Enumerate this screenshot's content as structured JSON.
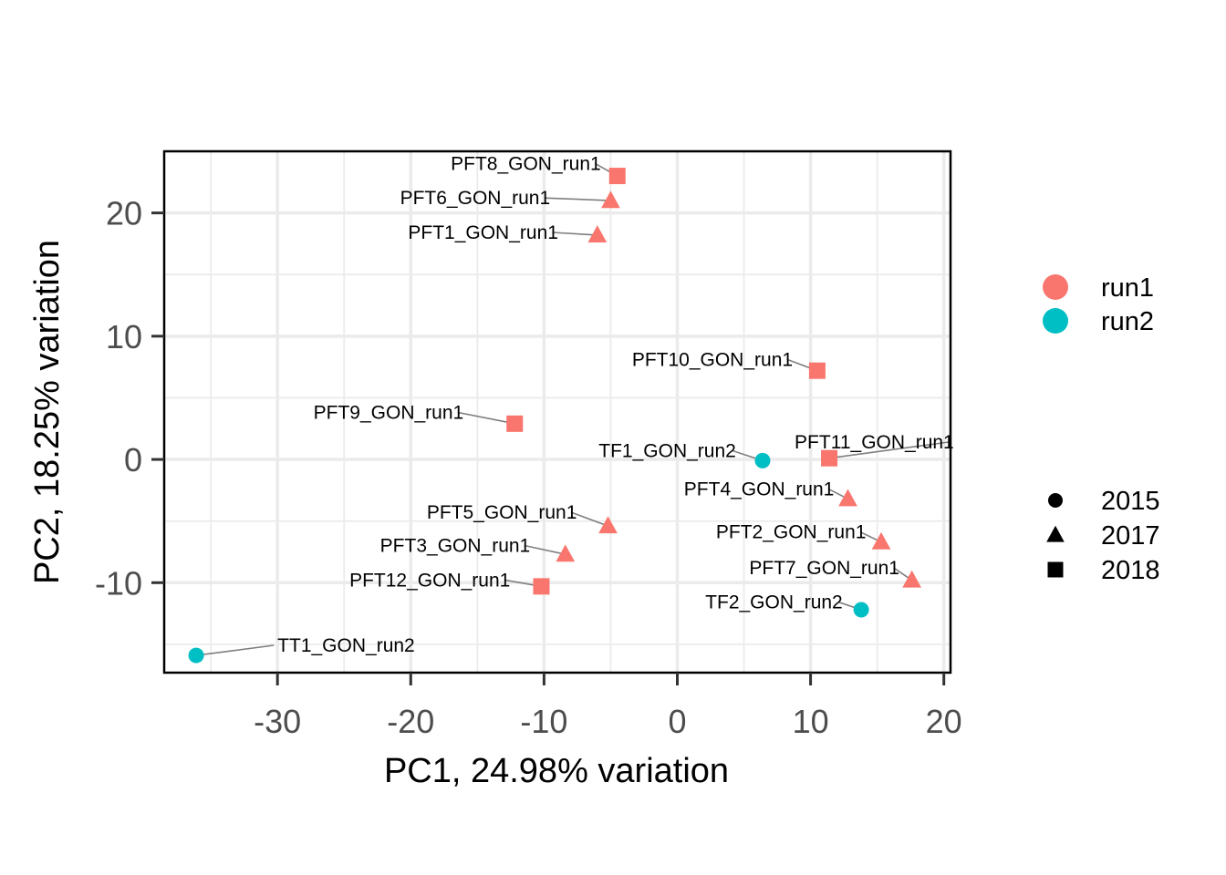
{
  "chart_data": {
    "type": "scatter",
    "xlabel": "PC1, 24.98% variation",
    "ylabel": "PC2, 18.25% variation",
    "xlim": [
      -38.5,
      20.5
    ],
    "ylim": [
      -17.3,
      25
    ],
    "x_ticks": [
      -30,
      -20,
      -10,
      0,
      10,
      20
    ],
    "y_ticks": [
      -10,
      0,
      10,
      20
    ],
    "grid": true,
    "legend_placement": "right",
    "color_legend": [
      {
        "label": "run1",
        "color": "#F8766D"
      },
      {
        "label": "run2",
        "color": "#00BFC4"
      }
    ],
    "shape_legend": [
      {
        "label": "2015",
        "shape": "circle"
      },
      {
        "label": "2017",
        "shape": "triangle"
      },
      {
        "label": "2018",
        "shape": "square"
      }
    ],
    "points": [
      {
        "label": "PFT8_GON_run1",
        "x": -4.5,
        "y": 23.0,
        "run": "run1",
        "year": "2018",
        "label_x": -17.0,
        "label_y": 23.5
      },
      {
        "label": "PFT6_GON_run1",
        "x": -5.0,
        "y": 21.0,
        "run": "run1",
        "year": "2017",
        "label_x": -20.8,
        "label_y": 20.7
      },
      {
        "label": "PFT1_GON_run1",
        "x": -6.0,
        "y": 18.2,
        "run": "run1",
        "year": "2017",
        "label_x": -20.2,
        "label_y": 17.9
      },
      {
        "label": "PFT10_GON_run1",
        "x": 10.5,
        "y": 7.2,
        "run": "run1",
        "year": "2018",
        "label_x": -3.4,
        "label_y": 7.6
      },
      {
        "label": "PFT9_GON_run1",
        "x": -12.2,
        "y": 2.9,
        "run": "run1",
        "year": "2018",
        "label_x": -27.3,
        "label_y": 3.3
      },
      {
        "label": "TF1_GON_run2",
        "x": 6.4,
        "y": -0.1,
        "run": "run2",
        "year": "2015",
        "label_x": -5.9,
        "label_y": 0.2
      },
      {
        "label": "PFT11_GON_run1",
        "x": 11.4,
        "y": 0.1,
        "run": "run1",
        "year": "2018",
        "label_x": 8.8,
        "label_y": 0.9
      },
      {
        "label": "PFT4_GON_run1",
        "x": 12.8,
        "y": -3.2,
        "run": "run1",
        "year": "2017",
        "label_x": 0.5,
        "label_y": -2.9
      },
      {
        "label": "PFT5_GON_run1",
        "x": -5.2,
        "y": -5.4,
        "run": "run1",
        "year": "2017",
        "label_x": -18.8,
        "label_y": -4.8
      },
      {
        "label": "PFT2_GON_run1",
        "x": 15.3,
        "y": -6.7,
        "run": "run1",
        "year": "2017",
        "label_x": 2.9,
        "label_y": -6.4
      },
      {
        "label": "PFT3_GON_run1",
        "x": -8.4,
        "y": -7.7,
        "run": "run1",
        "year": "2017",
        "label_x": -22.3,
        "label_y": -7.5
      },
      {
        "label": "PFT7_GON_run1",
        "x": 17.6,
        "y": -9.8,
        "run": "run1",
        "year": "2017",
        "label_x": 5.4,
        "label_y": -9.3
      },
      {
        "label": "PFT12_GON_run1",
        "x": -10.2,
        "y": -10.3,
        "run": "run1",
        "year": "2018",
        "label_x": -24.6,
        "label_y": -10.3
      },
      {
        "label": "TF2_GON_run2",
        "x": 13.8,
        "y": -12.2,
        "run": "run2",
        "year": "2015",
        "label_x": 2.1,
        "label_y": -12.1
      },
      {
        "label": "TT1_GON_run2",
        "x": -36.1,
        "y": -15.9,
        "run": "run2",
        "year": "2015",
        "label_x": -30.0,
        "label_y": -15.6
      }
    ]
  }
}
